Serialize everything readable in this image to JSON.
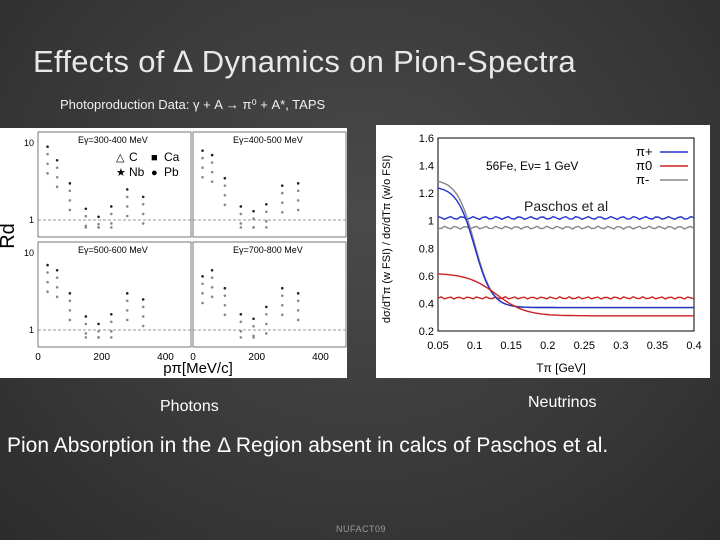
{
  "slide": {
    "title": "Effects of ∆ Dynamics on Pion-Spectra",
    "subtitle": "Photoproduction Data: γ + A → π⁰ + A*, TAPS",
    "caption_left": "Photons",
    "caption_right": "Neutrinos",
    "conclusion": "Pion Absorption in the Δ Region absent in calcs of Paschos et al.",
    "footer": "NUFACT09"
  },
  "chart_data": [
    {
      "type": "scatter",
      "title": "",
      "ylabel": "Rd",
      "xlabel": "pπ[MeV/c]",
      "xlim": [
        0,
        480
      ],
      "ylim": [
        0.6,
        14
      ],
      "x_ticks": [
        "0",
        "200",
        "400"
      ],
      "y_ticks": [
        "1",
        "10"
      ],
      "panels": [
        {
          "label": "Eγ=300-400 MeV"
        },
        {
          "label": "Eγ=400-500 MeV"
        },
        {
          "label": "Eγ=500-600 MeV"
        },
        {
          "label": "Eγ=700-800 MeV"
        }
      ],
      "legend": [
        {
          "marker": "△",
          "name": "C"
        },
        {
          "marker": "■",
          "name": "Ca"
        },
        {
          "marker": "★",
          "name": "Nb"
        },
        {
          "marker": "●",
          "name": "Pb"
        }
      ]
    },
    {
      "type": "line",
      "title": "",
      "annotation": "56Fe, Eν= 1 GeV",
      "ylabel": "dσ/dTπ (w FSI) / dσ/dTπ (w/o FSI)",
      "xlabel": "Tπ [GeV]",
      "xlim": [
        0.05,
        0.4
      ],
      "ylim": [
        0.2,
        1.6
      ],
      "x_ticks": [
        "0.05",
        "0.1",
        "0.15",
        "0.2",
        "0.25",
        "0.3",
        "0.35",
        "0.4"
      ],
      "y_ticks": [
        "0.2",
        "0.4",
        "0.6",
        "0.8",
        "1",
        "1.2",
        "1.4",
        "1.6"
      ],
      "overlay_label": "Paschos et al",
      "series": [
        {
          "name": "π+",
          "color": "#2233cc"
        },
        {
          "name": "π0",
          "color": "#cc2222"
        },
        {
          "name": "π-",
          "color": "#888888"
        }
      ]
    }
  ]
}
